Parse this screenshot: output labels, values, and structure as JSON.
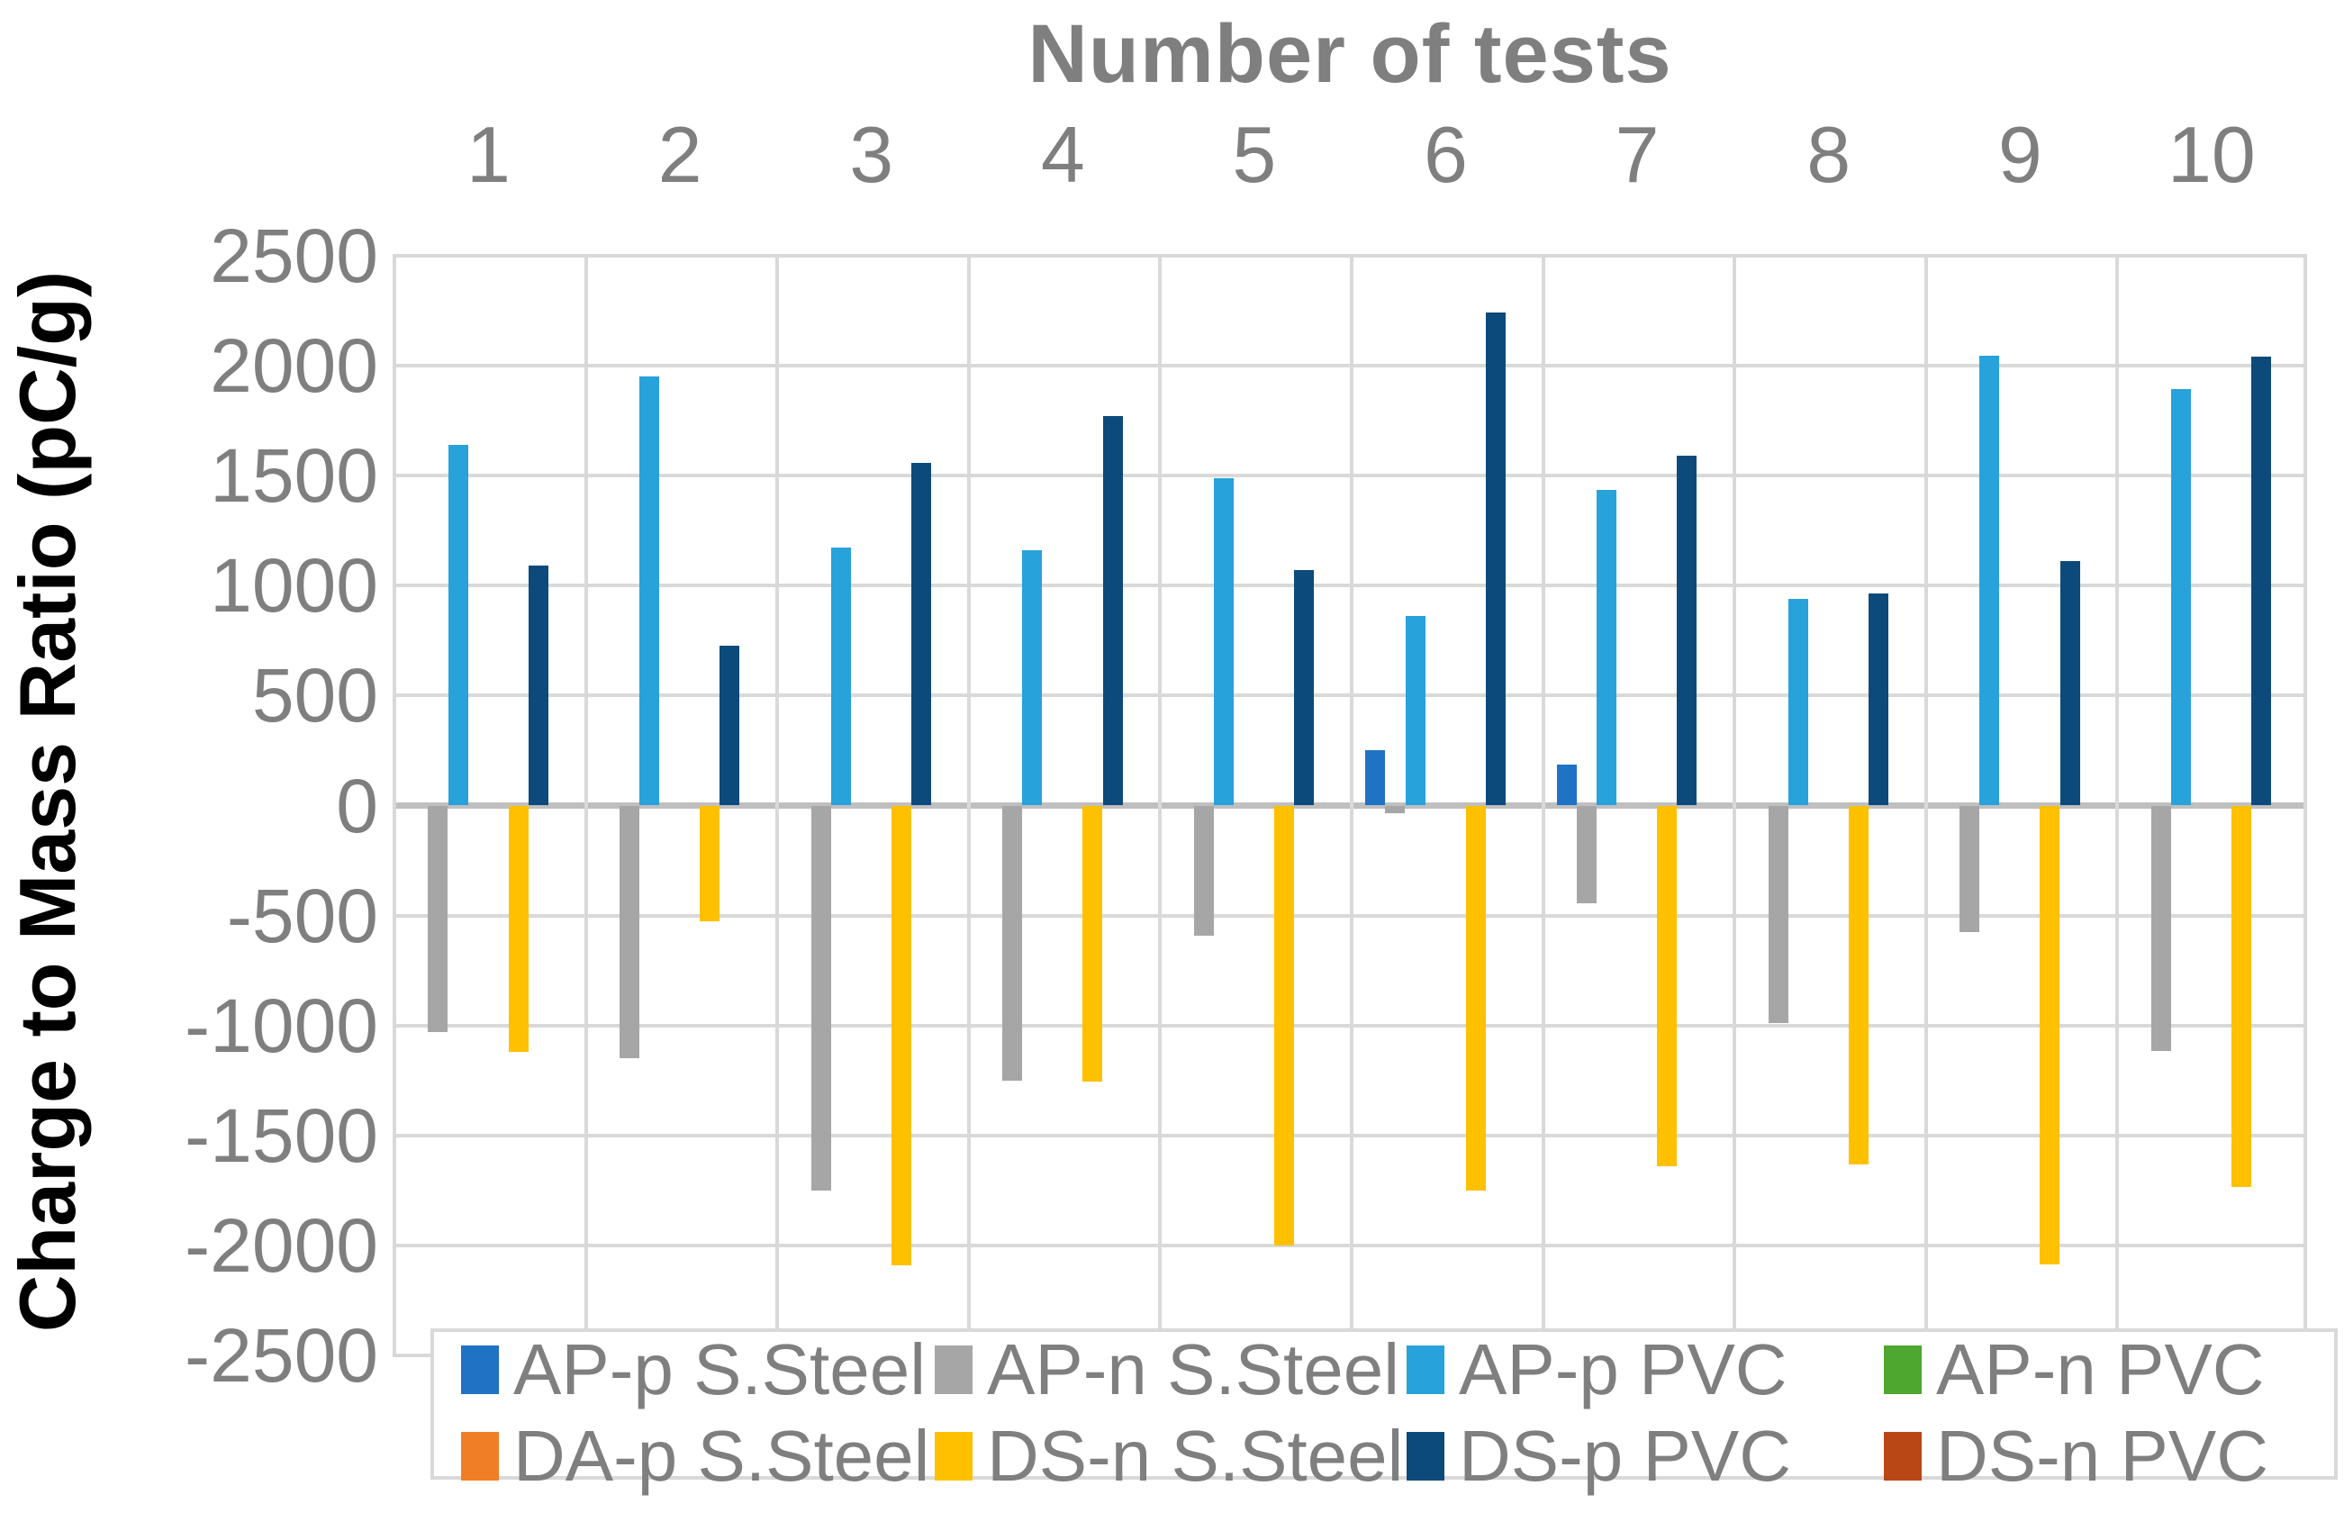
{
  "title": "Number of tests",
  "y_axis_label": "Charge to Mass Ratio (pC/g)",
  "chart_data": {
    "type": "bar",
    "title": "Number of tests",
    "xlabel": "Number of tests",
    "xlabel_position": "top",
    "ylabel": "Charge to Mass Ratio (pC/g)",
    "categories": [
      "1",
      "2",
      "3",
      "4",
      "5",
      "6",
      "7",
      "8",
      "9",
      "10"
    ],
    "ylim": [
      -2500,
      2500
    ],
    "yticks": [
      2500,
      2000,
      1500,
      1000,
      500,
      0,
      -500,
      -1000,
      -1500,
      -2000,
      -2500
    ],
    "grid": true,
    "legend_position": "bottom",
    "series": [
      {
        "name": "AP-p S.Steel",
        "color": "#1F72C4",
        "values": [
          0,
          0,
          0,
          0,
          0,
          250,
          185,
          0,
          0,
          0
        ]
      },
      {
        "name": "AP-n S.Steel",
        "color": "#A6A6A6",
        "values": [
          -1030,
          -1150,
          -1750,
          -1250,
          -590,
          -35,
          -445,
          -990,
          -575,
          -1115
        ]
      },
      {
        "name": "AP-p PVC",
        "color": "#27A2DB",
        "values": [
          1640,
          1950,
          1175,
          1160,
          1490,
          860,
          1435,
          940,
          2045,
          1895
        ]
      },
      {
        "name": "AP-n PVC",
        "color": "#4EA72E",
        "values": [
          0,
          0,
          0,
          0,
          0,
          0,
          0,
          0,
          0,
          0
        ]
      },
      {
        "name": "DA-p S.Steel",
        "color": "#F07E26",
        "values": [
          0,
          0,
          0,
          0,
          0,
          0,
          0,
          0,
          0,
          0
        ]
      },
      {
        "name": "DS-n S.Steel",
        "color": "#FFC000",
        "values": [
          -1120,
          -525,
          -2090,
          -1255,
          -2000,
          -1750,
          -1640,
          -1630,
          -2085,
          -1735
        ]
      },
      {
        "name": "DS-p PVC",
        "color": "#0C4A7B",
        "values": [
          1090,
          725,
          1560,
          1770,
          1070,
          2240,
          1590,
          965,
          1110,
          2040
        ]
      },
      {
        "name": "DS-n PVC",
        "color": "#B94715",
        "values": [
          0,
          0,
          0,
          0,
          0,
          0,
          0,
          0,
          0,
          0
        ]
      }
    ],
    "legend_rows": [
      [
        "AP-p S.Steel",
        "AP-n S.Steel",
        "AP-p PVC",
        "AP-n PVC"
      ],
      [
        "DA-p S.Steel",
        "DS-n S.Steel",
        "DS-p PVC",
        "DS-n PVC"
      ]
    ]
  },
  "colors": {
    "gridline": "#D9D9D9",
    "zero_line": "#BFBFBF",
    "tick_text": "#7F7F7F",
    "title_text": "#7F7F7F",
    "y_axis_label_text": "#000000",
    "plot_border": "#D9D9D9",
    "legend_border": "#D9D9D9",
    "background": "#FFFFFF"
  }
}
